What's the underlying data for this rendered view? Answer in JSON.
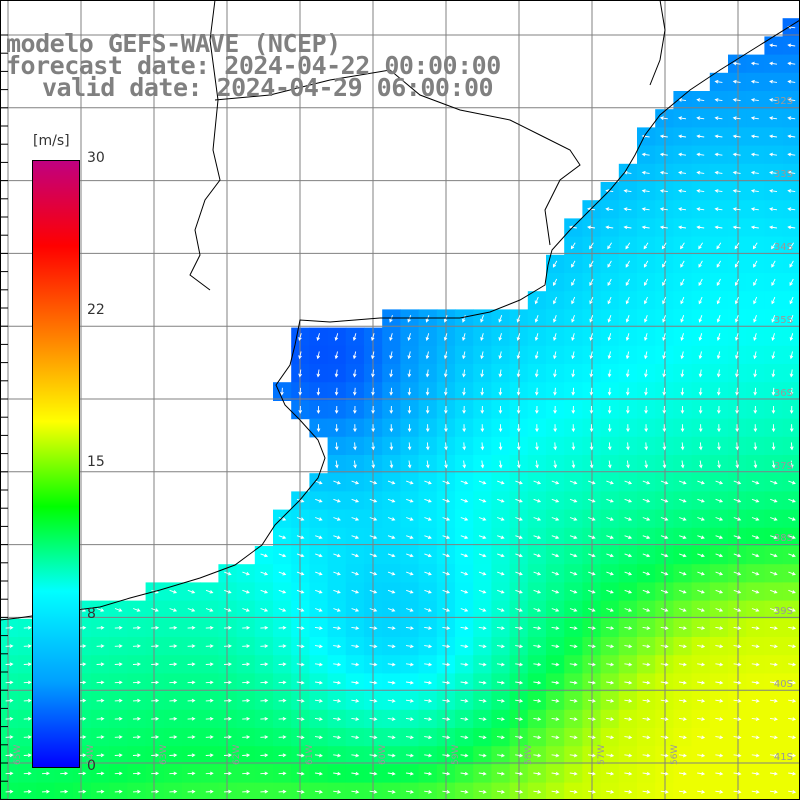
{
  "title": {
    "model": "modelo GEFS-WAVE (NCEP)",
    "forecast": "forecast date: 2024-04-22 00:00:00",
    "valid": "valid date: 2024-04-29 06:00:00"
  },
  "colorbar": {
    "units": "[m/s]",
    "ticks": [
      "30",
      "22",
      "15",
      "8",
      "0"
    ],
    "tick_values": [
      30,
      22,
      15,
      8,
      0
    ],
    "colors": [
      "#0000ff",
      "#00a0ff",
      "#00ffff",
      "#00ff00",
      "#ffff00",
      "#ff8000",
      "#ff0000",
      "#c00080"
    ]
  },
  "lat_labels": [
    "32S",
    "33S",
    "34S",
    "35S",
    "36S",
    "37S",
    "38S",
    "39S",
    "40S",
    "41S"
  ],
  "lon_labels": [
    "65W",
    "64W",
    "63W",
    "62W",
    "61W",
    "60W",
    "59W",
    "58W",
    "57W",
    "56W"
  ],
  "field_colors": {
    "land": "#ffffff",
    "coast": "#000000",
    "grid": "#808080",
    "arrow": "#ffffff"
  }
}
